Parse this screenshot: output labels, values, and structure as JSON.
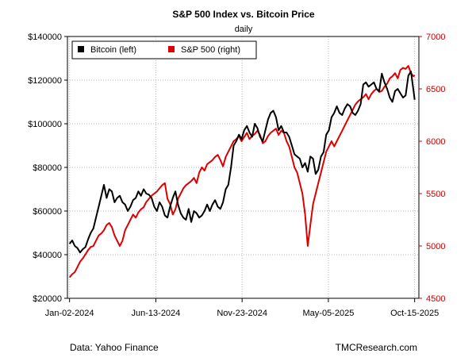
{
  "chart_data": {
    "type": "line",
    "title": "S&P 500 Index vs. Bitcoin Price",
    "subtitle": "daily",
    "x_tick_labels": [
      "Jan-02-2024",
      "Jun-13-2024",
      "Nov-23-2024",
      "May-05-2025",
      "Oct-15-2025"
    ],
    "x_tick_days": [
      0,
      163,
      326,
      489,
      652
    ],
    "xlim_days": [
      -4,
      660
    ],
    "left_axis": {
      "label_series": "Bitcoin",
      "ylim": [
        20000,
        140000
      ],
      "ticks": [
        20000,
        40000,
        60000,
        80000,
        100000,
        120000,
        140000
      ],
      "tick_labels": [
        "$20000",
        "$40000",
        "$60000",
        "$80000",
        "$100000",
        "$120000",
        "$140000"
      ],
      "color": "#000000"
    },
    "right_axis": {
      "label_series": "S&P 500",
      "ylim": [
        4500,
        7000
      ],
      "ticks": [
        4500,
        5000,
        5500,
        6000,
        6500,
        7000
      ],
      "tick_labels": [
        "4500",
        "5000",
        "5500",
        "6000",
        "6500",
        "7000"
      ],
      "color": "#cc0000"
    },
    "legend": [
      "Bitcoin (left)",
      "S&P 500 (right)"
    ],
    "legend_position": "top-left",
    "grid": true,
    "series": [
      {
        "name": "Bitcoin (left)",
        "axis": "left",
        "color": "#000000",
        "x": [
          0,
          5,
          10,
          15,
          20,
          25,
          30,
          35,
          40,
          45,
          50,
          55,
          60,
          65,
          70,
          75,
          80,
          85,
          90,
          95,
          100,
          105,
          110,
          115,
          120,
          125,
          130,
          135,
          140,
          145,
          150,
          155,
          160,
          165,
          170,
          175,
          180,
          185,
          190,
          195,
          200,
          205,
          210,
          215,
          220,
          225,
          230,
          235,
          240,
          245,
          250,
          255,
          260,
          265,
          270,
          275,
          280,
          285,
          290,
          295,
          300,
          305,
          310,
          315,
          320,
          325,
          330,
          335,
          340,
          345,
          350,
          355,
          360,
          365,
          370,
          375,
          380,
          385,
          390,
          395,
          400,
          405,
          410,
          415,
          420,
          425,
          430,
          435,
          440,
          445,
          450,
          455,
          460,
          465,
          470,
          475,
          480,
          485,
          490,
          495,
          500,
          505,
          510,
          515,
          520,
          525,
          530,
          535,
          540,
          545,
          550,
          555,
          560,
          565,
          570,
          575,
          580,
          585,
          590,
          595,
          600,
          605,
          610,
          615,
          620,
          625,
          630,
          635,
          640,
          645,
          650,
          652
        ],
        "values": [
          45000,
          46500,
          44000,
          43000,
          41000,
          42500,
          43500,
          47000,
          50000,
          52000,
          57000,
          62000,
          67000,
          72000,
          66000,
          70000,
          69000,
          64000,
          66000,
          67000,
          64000,
          63000,
          60000,
          62000,
          65000,
          66000,
          69000,
          67000,
          70000,
          68000,
          67500,
          66000,
          62000,
          60000,
          64000,
          62000,
          58000,
          57000,
          62000,
          66000,
          69000,
          63000,
          59000,
          57000,
          56000,
          61000,
          55000,
          60000,
          59000,
          57000,
          58000,
          60000,
          63000,
          60000,
          63000,
          65000,
          62000,
          61000,
          64000,
          70000,
          72000,
          80000,
          90000,
          92000,
          95000,
          93000,
          97000,
          99000,
          96000,
          94000,
          100000,
          98000,
          94000,
          92000,
          97000,
          102000,
          105000,
          106000,
          103000,
          97000,
          99000,
          96000,
          96000,
          94000,
          90000,
          86000,
          85000,
          84000,
          80000,
          82000,
          78000,
          85000,
          84000,
          77000,
          79000,
          85000,
          87000,
          95000,
          97000,
          103000,
          105000,
          108000,
          105000,
          104000,
          107000,
          109000,
          108000,
          105000,
          104000,
          106000,
          109000,
          118000,
          119000,
          117000,
          118000,
          119000,
          116000,
          115000,
          123000,
          119000,
          116000,
          112000,
          110000,
          115000,
          116000,
          114000,
          112000,
          113000,
          122000,
          124000,
          115000,
          111000
        ]
      },
      {
        "name": "S&P 500 (right)",
        "axis": "right",
        "color": "#dd0000",
        "x": [
          0,
          5,
          10,
          15,
          20,
          25,
          30,
          35,
          40,
          45,
          50,
          55,
          60,
          65,
          70,
          75,
          80,
          85,
          90,
          95,
          100,
          105,
          110,
          115,
          120,
          125,
          130,
          135,
          140,
          145,
          150,
          155,
          160,
          165,
          170,
          175,
          180,
          185,
          190,
          195,
          200,
          205,
          210,
          215,
          220,
          225,
          230,
          235,
          240,
          245,
          250,
          255,
          260,
          265,
          270,
          275,
          280,
          285,
          290,
          295,
          300,
          305,
          310,
          315,
          320,
          325,
          330,
          335,
          340,
          345,
          350,
          355,
          360,
          365,
          370,
          375,
          380,
          385,
          390,
          395,
          400,
          405,
          410,
          415,
          420,
          425,
          430,
          435,
          440,
          445,
          450,
          455,
          460,
          465,
          470,
          475,
          480,
          485,
          490,
          495,
          500,
          505,
          510,
          515,
          520,
          525,
          530,
          535,
          540,
          545,
          550,
          555,
          560,
          565,
          570,
          575,
          580,
          585,
          590,
          595,
          600,
          605,
          610,
          615,
          620,
          625,
          630,
          635,
          640,
          645,
          650,
          652
        ],
        "values": [
          4700,
          4730,
          4750,
          4800,
          4850,
          4880,
          4920,
          4960,
          4990,
          5000,
          5050,
          5100,
          5120,
          5150,
          5200,
          5220,
          5180,
          5100,
          5050,
          5000,
          5050,
          5150,
          5200,
          5250,
          5300,
          5270,
          5320,
          5350,
          5370,
          5420,
          5450,
          5480,
          5500,
          5520,
          5550,
          5580,
          5600,
          5450,
          5400,
          5300,
          5350,
          5450,
          5500,
          5550,
          5580,
          5600,
          5620,
          5650,
          5600,
          5700,
          5750,
          5720,
          5780,
          5800,
          5820,
          5850,
          5870,
          5820,
          5760,
          5850,
          5900,
          5950,
          6000,
          6020,
          6050,
          6000,
          6040,
          6080,
          6020,
          6050,
          6070,
          6100,
          6060,
          5980,
          6000,
          6050,
          6080,
          6100,
          6120,
          6060,
          6100,
          6080,
          6000,
          5950,
          5850,
          5750,
          5700,
          5600,
          5500,
          5300,
          5000,
          5200,
          5400,
          5500,
          5600,
          5700,
          5800,
          5900,
          5950,
          6000,
          5950,
          6000,
          6050,
          6100,
          6150,
          6200,
          6250,
          6300,
          6350,
          6380,
          6400,
          6420,
          6450,
          6400,
          6450,
          6480,
          6500,
          6470,
          6480,
          6520,
          6550,
          6600,
          6620,
          6650,
          6600,
          6680,
          6700,
          6690,
          6720,
          6650,
          6620,
          6630
        ]
      }
    ]
  },
  "footer": {
    "source": "Data: Yahoo Finance",
    "credit": "TMCResearch.com"
  }
}
